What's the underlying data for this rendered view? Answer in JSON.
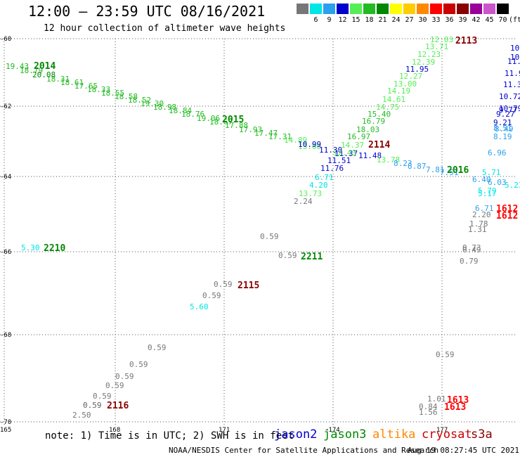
{
  "header": {
    "title": "12:00 — 23:59 UTC 08/16/2021",
    "subtitle": "12 hour collection of altimeter wave heights"
  },
  "color_scale": {
    "unit": "(ft)",
    "bins": [
      {
        "label": "3",
        "color": "#777777"
      },
      {
        "label": "6",
        "color": "#00e5e5"
      },
      {
        "label": "9",
        "color": "#2aa0ee"
      },
      {
        "label": "12",
        "color": "#0000cc"
      },
      {
        "label": "15",
        "color": "#55ee55"
      },
      {
        "label": "18",
        "color": "#22bb22"
      },
      {
        "label": "21",
        "color": "#008800"
      },
      {
        "label": "24",
        "color": "#ffff00"
      },
      {
        "label": "27",
        "color": "#ffcc00"
      },
      {
        "label": "30",
        "color": "#ff8800"
      },
      {
        "label": "33",
        "color": "#ff0000"
      },
      {
        "label": "36",
        "color": "#cc0000"
      },
      {
        "label": "39",
        "color": "#880000"
      },
      {
        "label": "42",
        "color": "#990099"
      },
      {
        "label": "45",
        "color": "#cc55cc"
      },
      {
        "label": "70",
        "color": "#000000"
      }
    ]
  },
  "axes": {
    "lat_labels": [
      "-60",
      "-62",
      "-64",
      "-66",
      "-68",
      "-70"
    ],
    "lon_labels": [
      "165",
      "168",
      "171",
      "-174",
      "177"
    ]
  },
  "observations": [
    {
      "t": "19.43",
      "c": "#22bb22"
    },
    {
      "t": "18.79",
      "c": "#22bb22"
    },
    {
      "t": "20.08",
      "c": "#008800"
    },
    {
      "t": "18.31",
      "c": "#22bb22"
    },
    {
      "t": "18.61",
      "c": "#22bb22"
    },
    {
      "t": "17.65",
      "c": "#22bb22"
    },
    {
      "t": "18.33",
      "c": "#22bb22"
    },
    {
      "t": "18.55",
      "c": "#22bb22"
    },
    {
      "t": "18.58",
      "c": "#22bb22"
    },
    {
      "t": "18.52",
      "c": "#22bb22"
    },
    {
      "t": "19.30",
      "c": "#22bb22"
    },
    {
      "t": "18.98",
      "c": "#22bb22"
    },
    {
      "t": "18.84",
      "c": "#22bb22"
    },
    {
      "t": "18.76",
      "c": "#22bb22"
    },
    {
      "t": "19.06",
      "c": "#22bb22"
    },
    {
      "t": "18.67",
      "c": "#22bb22"
    },
    {
      "t": "17.88",
      "c": "#22bb22"
    },
    {
      "t": "17.93",
      "c": "#22bb22"
    },
    {
      "t": "17.47",
      "c": "#22bb22"
    },
    {
      "t": "17.31",
      "c": "#22bb22"
    },
    {
      "t": "14.89",
      "c": "#55ee55"
    },
    {
      "t": "13.66",
      "c": "#55ee55"
    },
    {
      "t": "10.99",
      "c": "#0000cc"
    },
    {
      "t": "11.30",
      "c": "#0000cc"
    },
    {
      "t": "11.37",
      "c": "#0000cc"
    },
    {
      "t": "11.51",
      "c": "#0000cc"
    },
    {
      "t": "11.48",
      "c": "#0000cc"
    },
    {
      "t": "11.76",
      "c": "#0000cc"
    },
    {
      "t": "6.71",
      "c": "#00e5e5"
    },
    {
      "t": "4.20",
      "c": "#00e5e5"
    },
    {
      "t": "13.73",
      "c": "#55ee55"
    },
    {
      "t": "2.24",
      "c": "#777777"
    },
    {
      "t": "12.03",
      "c": "#55ee55"
    },
    {
      "t": "13.71",
      "c": "#55ee55"
    },
    {
      "t": "12.23",
      "c": "#55ee55"
    },
    {
      "t": "12.39",
      "c": "#55ee55"
    },
    {
      "t": "11.95",
      "c": "#0000cc"
    },
    {
      "t": "12.27",
      "c": "#55ee55"
    },
    {
      "t": "13.00",
      "c": "#55ee55"
    },
    {
      "t": "14.19",
      "c": "#55ee55"
    },
    {
      "t": "14.61",
      "c": "#55ee55"
    },
    {
      "t": "14.75",
      "c": "#55ee55"
    },
    {
      "t": "15.40",
      "c": "#22bb22"
    },
    {
      "t": "16.79",
      "c": "#22bb22"
    },
    {
      "t": "18.03",
      "c": "#22bb22"
    },
    {
      "t": "16.97",
      "c": "#22bb22"
    },
    {
      "t": "14.37",
      "c": "#55ee55"
    },
    {
      "t": "12.43",
      "c": "#55ee55"
    },
    {
      "t": "13.78",
      "c": "#55ee55"
    },
    {
      "t": "8.23",
      "c": "#2aa0ee"
    },
    {
      "t": "8.87",
      "c": "#2aa0ee"
    },
    {
      "t": "7.81",
      "c": "#2aa0ee"
    },
    {
      "t": "7.51",
      "c": "#2aa0ee"
    },
    {
      "t": "6.40",
      "c": "#2aa0ee"
    },
    {
      "t": "6.03",
      "c": "#2aa0ee"
    },
    {
      "t": "5.23",
      "c": "#00e5e5"
    },
    {
      "t": "5.71",
      "c": "#00e5e5"
    },
    {
      "t": "5.79",
      "c": "#00e5e5"
    },
    {
      "t": "5.17",
      "c": "#00e5e5"
    },
    {
      "t": "10.",
      "c": "#0000cc"
    },
    {
      "t": "10.",
      "c": "#0000cc"
    },
    {
      "t": "11.8",
      "c": "#0000cc"
    },
    {
      "t": "11.9",
      "c": "#0000cc"
    },
    {
      "t": "11.31",
      "c": "#0000cc"
    },
    {
      "t": "10.72",
      "c": "#0000cc"
    },
    {
      "t": "10.79",
      "c": "#0000cc"
    },
    {
      "t": "9.77",
      "c": "#0000cc"
    },
    {
      "t": "9.27",
      "c": "#0000cc"
    },
    {
      "t": "9.21",
      "c": "#0000cc"
    },
    {
      "t": "8.51",
      "c": "#2aa0ee"
    },
    {
      "t": "8.49",
      "c": "#2aa0ee"
    },
    {
      "t": "8.19",
      "c": "#2aa0ee"
    },
    {
      "t": "6.96",
      "c": "#2aa0ee"
    },
    {
      "t": "6.71",
      "c": "#2aa0ee"
    },
    {
      "t": "2.20",
      "c": "#777777"
    },
    {
      "t": "1.78",
      "c": "#777777"
    },
    {
      "t": "1.31",
      "c": "#777777"
    },
    {
      "t": "0.73",
      "c": "#777777"
    },
    {
      "t": "0.49",
      "c": "#777777"
    },
    {
      "t": "0.79",
      "c": "#777777"
    },
    {
      "t": "5.30",
      "c": "#00e5e5"
    },
    {
      "t": "0.59",
      "c": "#777777"
    },
    {
      "t": "0.59",
      "c": "#777777"
    },
    {
      "t": "0.59",
      "c": "#777777"
    },
    {
      "t": "0.59",
      "c": "#777777"
    },
    {
      "t": "5.60",
      "c": "#00e5e5"
    },
    {
      "t": "0.59",
      "c": "#777777"
    },
    {
      "t": "0.59",
      "c": "#777777"
    },
    {
      "t": "0.59",
      "c": "#777777"
    },
    {
      "t": "0.59",
      "c": "#777777"
    },
    {
      "t": "0.59",
      "c": "#777777"
    },
    {
      "t": "0.59",
      "c": "#777777"
    },
    {
      "t": "0.59",
      "c": "#777777"
    },
    {
      "t": "2.50",
      "c": "#777777"
    },
    {
      "t": "0.59",
      "c": "#777777"
    },
    {
      "t": "1.01",
      "c": "#777777"
    },
    {
      "t": "0.84",
      "c": "#777777"
    },
    {
      "t": "1.56",
      "c": "#777777"
    },
    {
      "t": "1.37",
      "c": "#777777"
    }
  ],
  "track_labels": [
    {
      "t": "2014",
      "c": "#008800"
    },
    {
      "t": "2015",
      "c": "#008800"
    },
    {
      "t": "2016",
      "c": "#008800"
    },
    {
      "t": "2113",
      "c": "#880000"
    },
    {
      "t": "2114",
      "c": "#880000"
    },
    {
      "t": "2115",
      "c": "#880000"
    },
    {
      "t": "2116",
      "c": "#880000"
    },
    {
      "t": "2210",
      "c": "#008800"
    },
    {
      "t": "2211",
      "c": "#008800"
    },
    {
      "t": "1612",
      "c": "#ff0000"
    },
    {
      "t": "1612",
      "c": "#ff0000"
    },
    {
      "t": "1613",
      "c": "#ff0000"
    },
    {
      "t": "1613",
      "c": "#ff0000"
    }
  ],
  "legend": {
    "note": "note: 1) Time is in UTC; 2) SWH is in feet",
    "satellites": [
      {
        "name": "jason2",
        "color": "#0000cc"
      },
      {
        "name": "jason3",
        "color": "#008800"
      },
      {
        "name": "altika",
        "color": "#ff8800"
      },
      {
        "name": "cryosat",
        "color": "#cc0000"
      },
      {
        "name": "s3a",
        "color": "#880000"
      }
    ]
  },
  "footer": {
    "source": "NOAA/NESDIS Center for Satellite Applications and Research",
    "timestamp": "Aug 19 08:27:45 UTC 2021"
  }
}
